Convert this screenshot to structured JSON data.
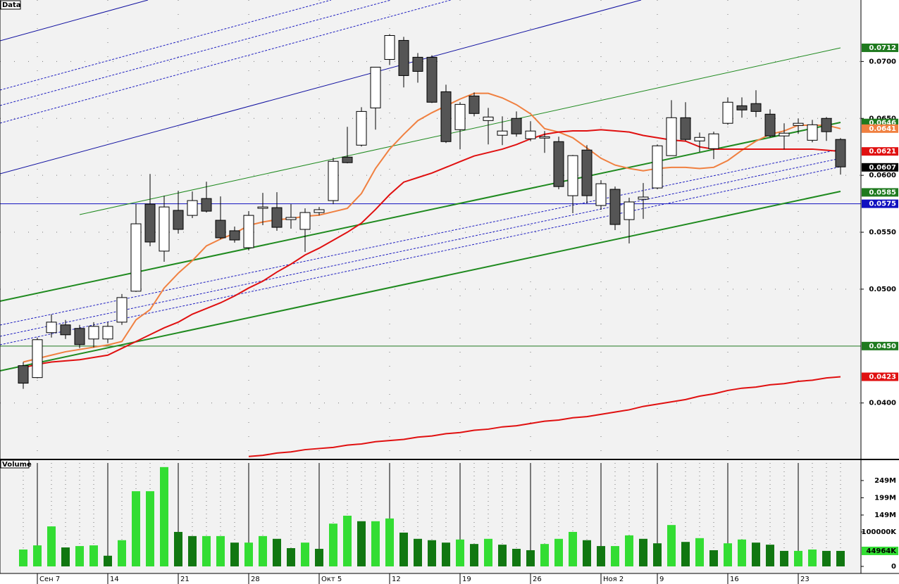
{
  "chart_data": [
    {
      "type": "candlestick",
      "title": "Data",
      "categories": [
        null,
        "Сен 7",
        null,
        null,
        null,
        null,
        "14",
        null,
        null,
        null,
        null,
        "21",
        null,
        null,
        null,
        null,
        "28",
        null,
        null,
        null,
        null,
        "Окт 5",
        null,
        null,
        null,
        null,
        "12",
        null,
        null,
        null,
        null,
        "19",
        null,
        null,
        null,
        null,
        "26",
        null,
        null,
        null,
        null,
        "Ноя 2",
        null,
        null,
        null,
        "9",
        null,
        null,
        null,
        null,
        "16",
        null,
        null,
        null,
        null,
        "23",
        null,
        null,
        null
      ],
      "open": [
        0.04328,
        0.04223,
        0.04618,
        0.04686,
        0.04655,
        0.04562,
        0.04562,
        0.0471,
        0.04982,
        0.05747,
        0.05334,
        0.05692,
        0.05648,
        0.05796,
        0.05605,
        0.05513,
        0.05364,
        0.0571,
        0.05716,
        0.05611,
        0.05525,
        0.05673,
        0.05778,
        0.0616,
        0.06265,
        0.06592,
        0.07018,
        0.07185,
        0.07037,
        0.07037,
        0.06734,
        0.06401,
        0.06697,
        0.06481,
        0.06352,
        0.065,
        0.06321,
        0.06327,
        0.06296,
        0.05821,
        0.06222,
        0.05735,
        0.05877,
        0.05611,
        0.0579,
        0.05889,
        0.06173,
        0.06506,
        0.06302,
        0.06234,
        0.06457,
        0.06611,
        0.0663,
        0.06537,
        0.06346,
        0.06438,
        0.06308,
        0.065,
        0.06315
      ],
      "high": [
        0.04359,
        0.04575,
        0.04778,
        0.04729,
        0.04686,
        0.0471,
        0.0471,
        0.04957,
        0.05747,
        0.06012,
        0.05821,
        0.05864,
        0.05858,
        0.05944,
        0.05815,
        0.0555,
        0.05685,
        0.05846,
        0.05852,
        0.05747,
        0.0571,
        0.05722,
        0.06154,
        0.06426,
        0.06598,
        0.0695,
        0.0724,
        0.07216,
        0.07074,
        0.07055,
        0.06796,
        0.06642,
        0.06728,
        0.06592,
        0.06518,
        0.06561,
        0.06475,
        0.06389,
        0.06339,
        0.06179,
        0.06265,
        0.05957,
        0.05901,
        0.05803,
        0.05932,
        0.06271,
        0.0666,
        0.06642,
        0.06376,
        0.06383,
        0.06685,
        0.06685,
        0.06747,
        0.0658,
        0.06457,
        0.065,
        0.06487,
        0.06512,
        0.06327
      ],
      "low": [
        0.04124,
        0.04217,
        0.04575,
        0.04562,
        0.04482,
        0.04488,
        0.04525,
        0.04686,
        0.04976,
        0.05377,
        0.05241,
        0.05488,
        0.05624,
        0.05673,
        0.05439,
        0.05408,
        0.0534,
        0.05562,
        0.05513,
        0.05531,
        0.05327,
        0.05648,
        0.05747,
        0.06105,
        0.06253,
        0.06401,
        0.06969,
        0.06772,
        0.06814,
        0.06635,
        0.06284,
        0.06228,
        0.06518,
        0.06271,
        0.06265,
        0.06339,
        0.06302,
        0.06197,
        0.05877,
        0.05667,
        0.05753,
        0.05698,
        0.05519,
        0.05401,
        0.05617,
        0.05877,
        0.06173,
        0.06302,
        0.06204,
        0.06142,
        0.06444,
        0.06506,
        0.06512,
        0.06333,
        0.06228,
        0.06364,
        0.0629,
        0.06302,
        0.06006
      ],
      "close": [
        0.04174,
        0.04556,
        0.0471,
        0.04599,
        0.04513,
        0.04673,
        0.04673,
        0.04926,
        0.05574,
        0.05414,
        0.05722,
        0.05525,
        0.05778,
        0.05685,
        0.05451,
        0.05432,
        0.05648,
        0.05722,
        0.05543,
        0.0563,
        0.05673,
        0.05698,
        0.06123,
        0.06111,
        0.06561,
        0.0695,
        0.07228,
        0.06876,
        0.06913,
        0.06642,
        0.06296,
        0.06623,
        0.06543,
        0.06512,
        0.06389,
        0.06364,
        0.06389,
        0.06339,
        0.05901,
        0.06173,
        0.05821,
        0.05926,
        0.05568,
        0.05766,
        0.05809,
        0.06259,
        0.06506,
        0.06315,
        0.06333,
        0.06364,
        0.06642,
        0.06574,
        0.06561,
        0.06346,
        0.0637,
        0.06457,
        0.06444,
        0.06383,
        0.06074
      ],
      "up_color": "#ffffff",
      "down_color": "#555555",
      "series": [
        {
          "color": "#f08040",
          "values": [
            0.0436,
            0.0439,
            0.0442,
            0.0445,
            0.0447,
            0.0449,
            0.0451,
            0.0454,
            0.0473,
            0.0482,
            0.0501,
            0.0514,
            0.0525,
            0.0538,
            0.0544,
            0.0549,
            0.0556,
            0.0559,
            0.0561,
            0.0562,
            0.0564,
            0.0565,
            0.0568,
            0.0571,
            0.0584,
            0.0606,
            0.0623,
            0.0636,
            0.0648,
            0.0655,
            0.0661,
            0.0667,
            0.0672,
            0.0672,
            0.0668,
            0.0662,
            0.0654,
            0.0641,
            0.0638,
            0.0633,
            0.0624,
            0.0615,
            0.0609,
            0.0606,
            0.0604,
            0.0606,
            0.0607,
            0.0607,
            0.0606,
            0.0607,
            0.0613,
            0.0622,
            0.063,
            0.0636,
            0.0639,
            0.0644,
            0.0644,
            0.0644,
            0.0641
          ]
        },
        {
          "color": "#e01010",
          "values": [
            0.0431,
            0.0434,
            0.0436,
            0.0437,
            0.0438,
            0.044,
            0.0442,
            0.0448,
            0.0454,
            0.046,
            0.0466,
            0.0471,
            0.0478,
            0.0483,
            0.0488,
            0.0494,
            0.0501,
            0.0507,
            0.0515,
            0.0522,
            0.053,
            0.0536,
            0.0543,
            0.055,
            0.0558,
            0.057,
            0.0583,
            0.0594,
            0.0598,
            0.0602,
            0.0607,
            0.0612,
            0.0617,
            0.062,
            0.0623,
            0.0627,
            0.0632,
            0.0636,
            0.0638,
            0.0639,
            0.0639,
            0.064,
            0.0639,
            0.0638,
            0.0635,
            0.0633,
            0.0631,
            0.063,
            0.0625,
            0.0623,
            0.0623,
            0.0623,
            0.0623,
            0.0623,
            0.0623,
            0.0623,
            0.0623,
            0.0622,
            0.0621
          ]
        },
        {
          "color": "#e01010",
          "values": [
            null,
            null,
            null,
            null,
            null,
            null,
            null,
            null,
            null,
            null,
            null,
            null,
            null,
            null,
            null,
            null,
            0.0353,
            0.0354,
            0.0356,
            0.0357,
            0.0359,
            0.036,
            0.0361,
            0.0363,
            0.0364,
            0.0366,
            0.0367,
            0.0368,
            0.037,
            0.0371,
            0.0373,
            0.0374,
            0.0376,
            0.0377,
            0.0379,
            0.038,
            0.0382,
            0.0384,
            0.0385,
            0.0387,
            0.0388,
            0.039,
            0.0392,
            0.0394,
            0.0397,
            0.0399,
            0.0401,
            0.0403,
            0.0406,
            0.0408,
            0.0411,
            0.0413,
            0.0414,
            0.0416,
            0.0417,
            0.0419,
            0.042,
            0.0422,
            0.0423
          ]
        }
      ],
      "ylim": [
        0.0351,
        0.0754
      ],
      "yticks": [
        {
          "value": 0.07,
          "label": "0.0700"
        },
        {
          "value": 0.065,
          "label": "0.0650"
        },
        {
          "value": 0.06,
          "label": "0.0600"
        },
        {
          "value": 0.055,
          "label": "0.0550"
        },
        {
          "value": 0.05,
          "label": "0.0500"
        },
        {
          "value": 0.04,
          "label": "0.0400"
        }
      ],
      "markers": [
        {
          "value": 0.0712,
          "label": "0.0712",
          "color": "#1f7a1f"
        },
        {
          "value": 0.0646,
          "label": "0.0646",
          "color": "#1f7a1f"
        },
        {
          "value": 0.0641,
          "label": "0.0641",
          "color": "#f08040"
        },
        {
          "value": 0.0621,
          "label": "0.0621",
          "color": "#e01010"
        },
        {
          "value": 0.0607,
          "label": "0.0607",
          "color": "#000000"
        },
        {
          "value": 0.0585,
          "label": "0.0585",
          "color": "#1f7a1f"
        },
        {
          "value": 0.0575,
          "label": "0.0575",
          "color": "#1010c0",
          "line": true
        },
        {
          "value": 0.045,
          "label": "0.0450",
          "color": "#1f7a1f",
          "line": true
        },
        {
          "value": 0.0423,
          "label": "0.0423",
          "color": "#e01010"
        }
      ],
      "grid": true
    },
    {
      "type": "bar",
      "title": "Volume",
      "values": [
        49,
        61,
        116,
        55,
        59,
        61,
        31,
        76,
        218,
        218,
        288,
        100,
        88,
        88,
        88,
        69,
        69,
        88,
        80,
        53,
        69,
        51,
        124,
        147,
        131,
        131,
        139,
        98,
        80,
        76,
        69,
        78,
        65,
        80,
        63,
        51,
        47,
        65,
        80,
        100,
        76,
        59,
        59,
        90,
        80,
        67,
        120,
        71,
        82,
        47,
        67,
        78,
        69,
        63,
        45,
        45,
        49,
        45,
        44.964
      ],
      "up_color": "#33dd33",
      "down_color": "#117711",
      "ylim": [
        0,
        306
      ],
      "yticks": [
        0,
        {
          "value": 100,
          "label": "100000K"
        },
        {
          "value": 149,
          "label": "149M"
        },
        {
          "value": 199,
          "label": "199M"
        },
        {
          "value": 249,
          "label": "249M"
        }
      ],
      "marker": {
        "value": 44.964,
        "label": "44964K",
        "color": "#33dd33"
      },
      "grid": true
    }
  ]
}
